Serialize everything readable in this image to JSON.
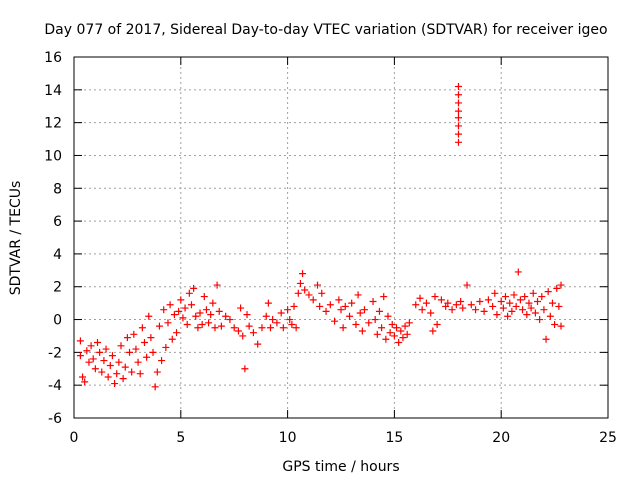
{
  "chart_data": {
    "type": "scatter",
    "title": "Day 077 of 2017, Sidereal Day-to-day VTEC variation (SDTVAR) for receiver igeo",
    "xlabel": "GPS time / hours",
    "ylabel": "SDTVAR / TECUs",
    "xlim": [
      0,
      25
    ],
    "ylim": [
      -6,
      16
    ],
    "xticks": [
      0,
      5,
      10,
      15,
      20,
      25
    ],
    "yticks": [
      -6,
      -4,
      -2,
      0,
      2,
      4,
      6,
      8,
      10,
      12,
      14,
      16
    ],
    "grid": true,
    "marker": "+",
    "color": "#ff0000",
    "series": [
      {
        "name": "SDTVAR",
        "points": [
          [
            0.3,
            -1.3
          ],
          [
            0.3,
            -2.2
          ],
          [
            0.4,
            -3.5
          ],
          [
            0.5,
            -3.8
          ],
          [
            0.6,
            -1.9
          ],
          [
            0.7,
            -2.6
          ],
          [
            0.8,
            -1.6
          ],
          [
            0.9,
            -2.4
          ],
          [
            1.0,
            -3.0
          ],
          [
            1.1,
            -1.4
          ],
          [
            1.2,
            -2.0
          ],
          [
            1.3,
            -3.2
          ],
          [
            1.4,
            -2.5
          ],
          [
            1.5,
            -1.8
          ],
          [
            1.6,
            -3.5
          ],
          [
            1.7,
            -2.8
          ],
          [
            1.8,
            -2.2
          ],
          [
            1.9,
            -3.9
          ],
          [
            2.0,
            -3.3
          ],
          [
            2.1,
            -2.6
          ],
          [
            2.2,
            -1.6
          ],
          [
            2.3,
            -3.6
          ],
          [
            2.4,
            -2.9
          ],
          [
            2.5,
            -1.1
          ],
          [
            2.6,
            -2.0
          ],
          [
            2.7,
            -3.2
          ],
          [
            2.8,
            -0.9
          ],
          [
            2.9,
            -1.8
          ],
          [
            3.0,
            -2.6
          ],
          [
            3.1,
            -3.3
          ],
          [
            3.2,
            -0.5
          ],
          [
            3.3,
            -1.4
          ],
          [
            3.4,
            -2.3
          ],
          [
            3.5,
            0.2
          ],
          [
            3.6,
            -1.1
          ],
          [
            3.7,
            -2.0
          ],
          [
            3.8,
            -4.1
          ],
          [
            3.9,
            -3.2
          ],
          [
            4.0,
            -0.4
          ],
          [
            4.1,
            -2.5
          ],
          [
            4.2,
            0.6
          ],
          [
            4.3,
            -1.7
          ],
          [
            4.4,
            -0.2
          ],
          [
            4.5,
            0.9
          ],
          [
            4.6,
            -1.2
          ],
          [
            4.7,
            0.3
          ],
          [
            4.8,
            -0.8
          ],
          [
            4.9,
            0.5
          ],
          [
            5.0,
            1.2
          ],
          [
            5.1,
            0.1
          ],
          [
            5.2,
            0.7
          ],
          [
            5.3,
            -0.3
          ],
          [
            5.4,
            1.6
          ],
          [
            5.5,
            0.9
          ],
          [
            5.6,
            1.9
          ],
          [
            5.7,
            0.2
          ],
          [
            5.8,
            -0.5
          ],
          [
            5.9,
            0.4
          ],
          [
            6.0,
            -0.3
          ],
          [
            6.1,
            1.4
          ],
          [
            6.2,
            0.6
          ],
          [
            6.3,
            -0.2
          ],
          [
            6.4,
            0.3
          ],
          [
            6.5,
            1.0
          ],
          [
            6.6,
            -0.5
          ],
          [
            6.7,
            2.1
          ],
          [
            6.8,
            0.5
          ],
          [
            6.9,
            -0.4
          ],
          [
            7.1,
            0.2
          ],
          [
            7.3,
            0.0
          ],
          [
            7.5,
            -0.5
          ],
          [
            7.7,
            -0.7
          ],
          [
            7.8,
            0.7
          ],
          [
            7.9,
            -1.0
          ],
          [
            8.0,
            -3.0
          ],
          [
            8.1,
            0.3
          ],
          [
            8.2,
            -0.4
          ],
          [
            8.4,
            -0.8
          ],
          [
            8.6,
            -1.5
          ],
          [
            8.8,
            -0.5
          ],
          [
            9.0,
            0.2
          ],
          [
            9.1,
            1.0
          ],
          [
            9.2,
            -0.5
          ],
          [
            9.3,
            0.0
          ],
          [
            9.5,
            -0.2
          ],
          [
            9.7,
            0.4
          ],
          [
            9.8,
            -0.5
          ],
          [
            10.0,
            0.6
          ],
          [
            10.1,
            0.0
          ],
          [
            10.2,
            -0.3
          ],
          [
            10.3,
            0.8
          ],
          [
            10.4,
            -0.5
          ],
          [
            10.5,
            1.6
          ],
          [
            10.6,
            2.2
          ],
          [
            10.7,
            2.8
          ],
          [
            10.8,
            1.8
          ],
          [
            11.0,
            1.5
          ],
          [
            11.2,
            1.2
          ],
          [
            11.4,
            2.1
          ],
          [
            11.5,
            0.8
          ],
          [
            11.6,
            1.6
          ],
          [
            11.8,
            0.5
          ],
          [
            12.0,
            0.9
          ],
          [
            12.2,
            -0.1
          ],
          [
            12.4,
            1.2
          ],
          [
            12.5,
            0.6
          ],
          [
            12.6,
            -0.5
          ],
          [
            12.7,
            0.8
          ],
          [
            12.9,
            0.2
          ],
          [
            13.0,
            1.0
          ],
          [
            13.2,
            -0.3
          ],
          [
            13.3,
            1.5
          ],
          [
            13.4,
            0.4
          ],
          [
            13.5,
            -0.7
          ],
          [
            13.6,
            0.6
          ],
          [
            13.8,
            -0.2
          ],
          [
            14.0,
            1.1
          ],
          [
            14.1,
            0.0
          ],
          [
            14.2,
            -0.9
          ],
          [
            14.3,
            0.5
          ],
          [
            14.4,
            -0.5
          ],
          [
            14.5,
            1.4
          ],
          [
            14.6,
            -1.2
          ],
          [
            14.7,
            0.2
          ],
          [
            14.8,
            -0.8
          ],
          [
            14.9,
            -0.3
          ],
          [
            15.0,
            -1.0
          ],
          [
            15.1,
            -0.5
          ],
          [
            15.2,
            -1.4
          ],
          [
            15.3,
            -0.7
          ],
          [
            15.4,
            -1.1
          ],
          [
            15.5,
            -0.4
          ],
          [
            15.6,
            -0.9
          ],
          [
            15.7,
            -0.2
          ],
          [
            16.0,
            0.9
          ],
          [
            16.2,
            1.3
          ],
          [
            16.3,
            0.6
          ],
          [
            16.5,
            1.0
          ],
          [
            16.7,
            0.4
          ],
          [
            16.8,
            -0.7
          ],
          [
            16.9,
            1.4
          ],
          [
            17.0,
            -0.3
          ],
          [
            17.2,
            1.2
          ],
          [
            17.4,
            0.8
          ],
          [
            17.5,
            1.0
          ],
          [
            17.7,
            0.6
          ],
          [
            17.9,
            0.9
          ],
          [
            18.0,
            14.2
          ],
          [
            18.0,
            13.7
          ],
          [
            18.0,
            13.2
          ],
          [
            18.0,
            12.7
          ],
          [
            18.0,
            12.3
          ],
          [
            18.0,
            11.8
          ],
          [
            18.0,
            11.3
          ],
          [
            18.0,
            10.8
          ],
          [
            18.1,
            1.1
          ],
          [
            18.2,
            0.7
          ],
          [
            18.4,
            2.1
          ],
          [
            18.6,
            0.9
          ],
          [
            18.8,
            0.6
          ],
          [
            19.0,
            1.1
          ],
          [
            19.2,
            0.5
          ],
          [
            19.4,
            1.2
          ],
          [
            19.6,
            0.8
          ],
          [
            19.7,
            1.6
          ],
          [
            19.8,
            0.3
          ],
          [
            20.0,
            1.1
          ],
          [
            20.1,
            0.7
          ],
          [
            20.2,
            1.4
          ],
          [
            20.3,
            0.2
          ],
          [
            20.4,
            1.0
          ],
          [
            20.5,
            0.5
          ],
          [
            20.6,
            1.5
          ],
          [
            20.7,
            0.8
          ],
          [
            20.8,
            2.9
          ],
          [
            20.9,
            1.2
          ],
          [
            21.0,
            0.6
          ],
          [
            21.1,
            1.4
          ],
          [
            21.2,
            0.3
          ],
          [
            21.3,
            1.0
          ],
          [
            21.4,
            0.7
          ],
          [
            21.5,
            1.6
          ],
          [
            21.6,
            0.4
          ],
          [
            21.7,
            1.1
          ],
          [
            21.8,
            0.0
          ],
          [
            21.9,
            1.4
          ],
          [
            22.0,
            0.6
          ],
          [
            22.1,
            -1.2
          ],
          [
            22.2,
            1.7
          ],
          [
            22.3,
            0.2
          ],
          [
            22.4,
            1.0
          ],
          [
            22.5,
            -0.3
          ],
          [
            22.6,
            1.9
          ],
          [
            22.7,
            0.8
          ],
          [
            22.8,
            2.1
          ],
          [
            22.8,
            -0.4
          ]
        ]
      }
    ]
  }
}
